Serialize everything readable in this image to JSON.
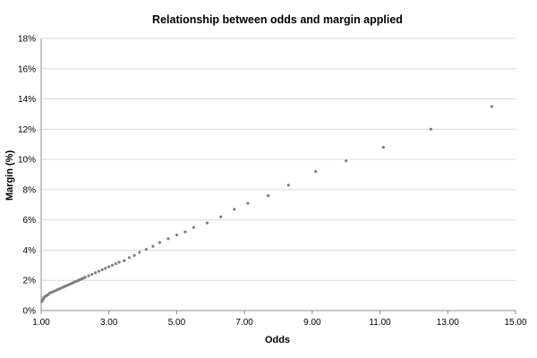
{
  "chart_data": {
    "type": "scatter",
    "title": "Relationship between odds and margin applied",
    "xlabel": "Odds",
    "ylabel": "Margin  (%)",
    "xlim": [
      1.0,
      15.0
    ],
    "ylim": [
      0,
      18
    ],
    "x_ticks": [
      "1.00",
      "3.00",
      "5.00",
      "7.00",
      "9.00",
      "11.00",
      "13.00",
      "15.00"
    ],
    "y_ticks": [
      "0%",
      "2%",
      "4%",
      "6%",
      "8%",
      "10%",
      "12%",
      "14%",
      "16%",
      "18%"
    ],
    "grid": true,
    "legend": "none",
    "marker_color": "#7f7f7f",
    "series": [
      {
        "x": [
          1.02,
          1.04,
          1.06,
          1.08,
          1.1,
          1.13,
          1.16,
          1.2,
          1.25,
          1.3,
          1.35,
          1.4,
          1.45,
          1.5,
          1.55,
          1.6,
          1.65,
          1.7,
          1.75,
          1.8,
          1.85,
          1.9,
          1.95,
          2.0,
          2.05,
          2.1,
          2.15,
          2.2,
          2.25,
          2.3,
          2.4,
          2.5,
          2.6,
          2.7,
          2.8,
          2.9,
          3.0,
          3.1,
          3.2,
          3.3,
          3.45,
          3.6,
          3.75,
          3.9,
          4.1,
          4.3,
          4.5,
          4.75,
          5.0,
          5.25,
          5.5,
          5.9,
          6.3,
          6.7,
          7.1,
          7.7,
          8.3,
          9.1,
          10.0,
          11.1,
          12.5,
          14.3
        ],
        "y": [
          0.6,
          0.7,
          0.75,
          0.85,
          0.9,
          0.95,
          1.0,
          1.05,
          1.15,
          1.2,
          1.25,
          1.3,
          1.35,
          1.4,
          1.45,
          1.5,
          1.55,
          1.6,
          1.65,
          1.7,
          1.75,
          1.8,
          1.85,
          1.9,
          1.95,
          2.0,
          2.05,
          2.1,
          2.15,
          2.2,
          2.3,
          2.4,
          2.5,
          2.6,
          2.7,
          2.8,
          2.9,
          3.0,
          3.1,
          3.2,
          3.3,
          3.5,
          3.65,
          3.85,
          4.05,
          4.25,
          4.5,
          4.75,
          5.0,
          5.2,
          5.5,
          5.8,
          6.2,
          6.7,
          7.1,
          7.6,
          8.3,
          9.2,
          9.9,
          10.8,
          12.0,
          13.5
        ]
      }
    ]
  }
}
